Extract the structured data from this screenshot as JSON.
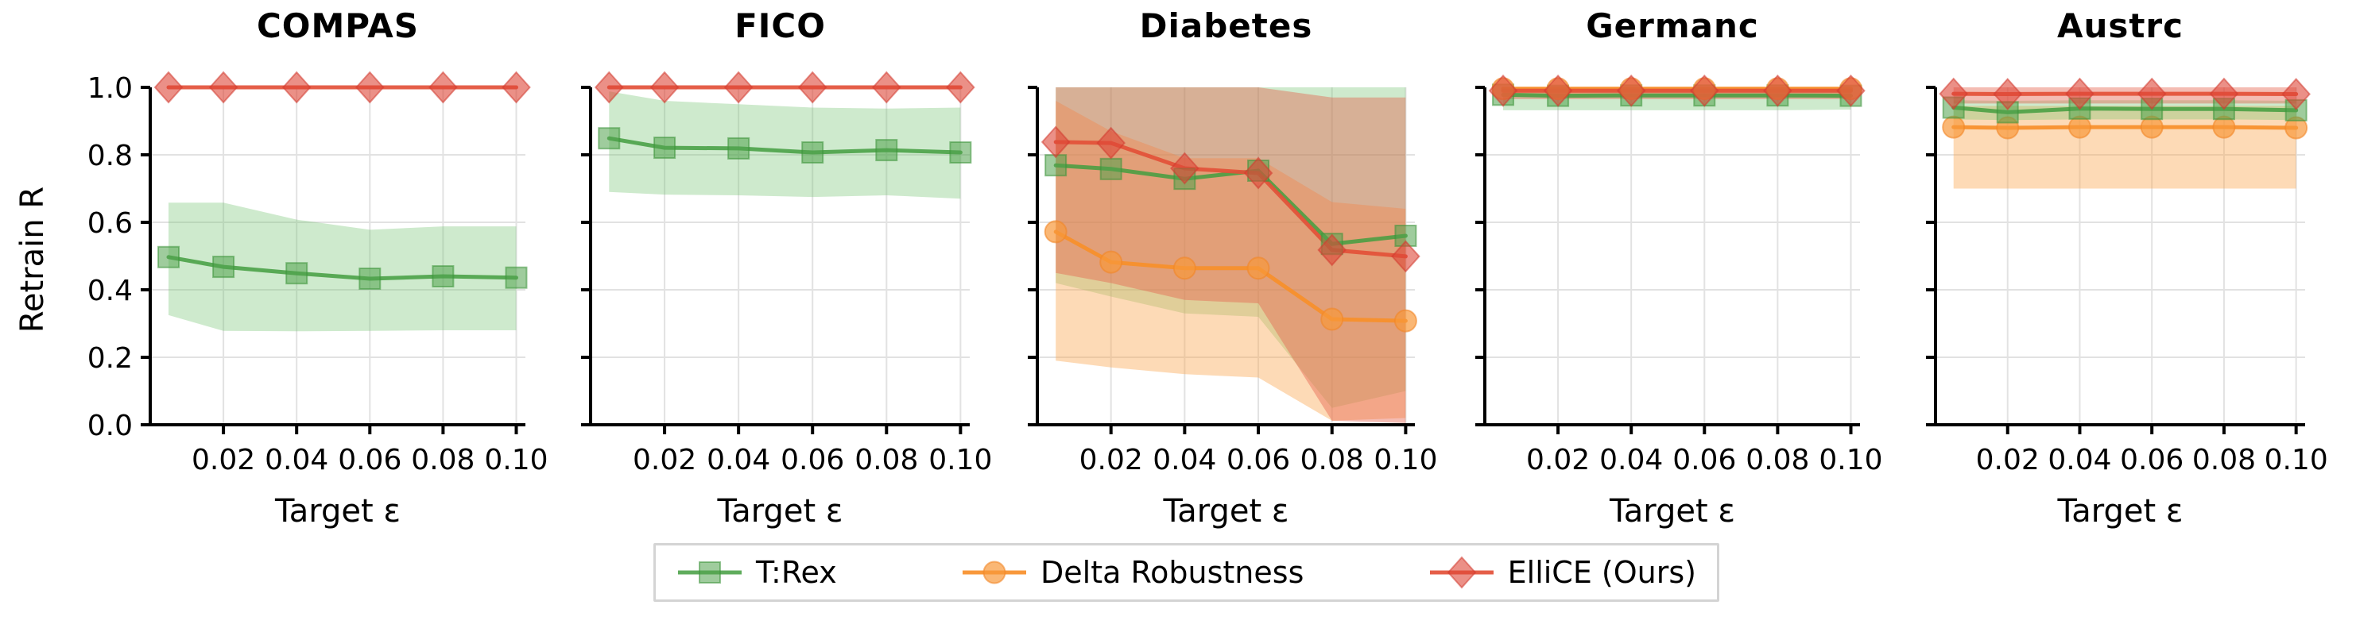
{
  "figure": {
    "ylabel": "Retrain R",
    "xlabel": "Target ε",
    "background_color": "#ffffff",
    "grid_color": "#e2e2e2",
    "spine_color": "#000000",
    "y_ticks": [
      "0.0",
      "0.2",
      "0.4",
      "0.6",
      "0.8",
      "1.0"
    ],
    "y_tick_values": [
      0.0,
      0.2,
      0.4,
      0.6,
      0.8,
      1.0
    ],
    "x_ticks": [
      "0.02",
      "0.04",
      "0.06",
      "0.08",
      "0.10"
    ],
    "x_tick_values": [
      0.02,
      0.04,
      0.06,
      0.08,
      0.1
    ],
    "xlim": [
      0.0,
      0.1025
    ],
    "ylim": [
      0.0,
      1.0
    ],
    "legend": {
      "items": [
        {
          "label": "T:Rex",
          "marker": "square",
          "series_key": "trex"
        },
        {
          "label": "Delta Robustness",
          "marker": "circle",
          "series_key": "delta"
        },
        {
          "label": "ElliCE (Ours)",
          "marker": "diamond",
          "series_key": "ellice"
        }
      ]
    },
    "series_styles": {
      "trex": {
        "line": "rgba(67,157,64,0.85)",
        "marker_fill": "rgba(80,163,76,0.55)",
        "marker_stroke": "rgba(60,148,58,0.55)",
        "band": "rgba(116,196,112,0.35)"
      },
      "delta": {
        "line": "rgba(247,143,42,0.92)",
        "marker_fill": "rgba(248,152,58,0.70)",
        "marker_stroke": "rgba(242,135,40,0.6)",
        "band": "rgba(251,166,82,0.42)"
      },
      "ellice": {
        "line": "rgba(227,80,56,0.92)",
        "marker_fill": "rgba(222,70,55,0.60)",
        "marker_stroke": "rgba(210,58,48,0.55)",
        "band": "rgba(229,95,75,0.42)"
      }
    }
  },
  "chart_data": [
    {
      "type": "line",
      "title": "COMPAS",
      "xlabel": "Target ε",
      "ylabel": "Retrain R",
      "grid": true,
      "xlim": [
        0.0,
        0.1025
      ],
      "ylim": [
        0.0,
        1.0
      ],
      "x": [
        0.005,
        0.02,
        0.04,
        0.06,
        0.08,
        0.1
      ],
      "series": [
        {
          "key": "trex",
          "name": "T:Rex",
          "values": [
            0.497,
            0.468,
            0.449,
            0.433,
            0.44,
            0.436
          ],
          "band_lower": [
            0.325,
            0.278,
            0.277,
            0.278,
            0.28,
            0.28
          ],
          "band_upper": [
            0.658,
            0.658,
            0.608,
            0.578,
            0.588,
            0.588
          ]
        },
        {
          "key": "ellice",
          "name": "ElliCE (Ours)",
          "values": [
            1.0,
            1.0,
            1.0,
            1.0,
            1.0,
            1.0
          ],
          "band_lower": null,
          "band_upper": null
        }
      ]
    },
    {
      "type": "line",
      "title": "FICO",
      "xlabel": "Target ε",
      "ylabel": "Retrain R",
      "grid": true,
      "xlim": [
        0.0,
        0.1025
      ],
      "ylim": [
        0.0,
        1.0
      ],
      "x": [
        0.005,
        0.02,
        0.04,
        0.06,
        0.08,
        0.1
      ],
      "series": [
        {
          "key": "trex",
          "name": "T:Rex",
          "values": [
            0.849,
            0.821,
            0.819,
            0.807,
            0.814,
            0.807
          ],
          "band_lower": [
            0.69,
            0.682,
            0.68,
            0.675,
            0.68,
            0.67
          ],
          "band_upper": [
            0.988,
            0.96,
            0.95,
            0.94,
            0.937,
            0.94
          ]
        },
        {
          "key": "ellice",
          "name": "ElliCE (Ours)",
          "values": [
            1.0,
            1.0,
            1.0,
            1.0,
            1.0,
            1.0
          ],
          "band_lower": null,
          "band_upper": null
        }
      ]
    },
    {
      "type": "line",
      "title": "Diabetes",
      "xlabel": "Target ε",
      "ylabel": "Retrain R",
      "grid": true,
      "xlim": [
        0.0,
        0.1025
      ],
      "ylim": [
        0.0,
        1.0
      ],
      "x": [
        0.005,
        0.02,
        0.04,
        0.06,
        0.08,
        0.1
      ],
      "series": [
        {
          "key": "trex",
          "name": "T:Rex",
          "values": [
            0.769,
            0.758,
            0.729,
            0.753,
            0.536,
            0.56
          ],
          "band_lower": [
            0.42,
            0.38,
            0.33,
            0.32,
            0.05,
            0.1
          ],
          "band_upper": [
            1.0,
            1.0,
            1.0,
            1.0,
            1.0,
            1.0
          ]
        },
        {
          "key": "delta",
          "name": "Delta Robustness",
          "values": [
            0.572,
            0.482,
            0.464,
            0.464,
            0.313,
            0.308
          ],
          "band_lower": [
            0.19,
            0.17,
            0.15,
            0.14,
            0.012,
            0.02
          ],
          "band_upper": [
            0.96,
            0.87,
            0.79,
            0.79,
            0.66,
            0.64
          ]
        },
        {
          "key": "ellice",
          "name": "ElliCE (Ours)",
          "values": [
            0.838,
            0.835,
            0.76,
            0.746,
            0.518,
            0.499
          ],
          "band_lower": [
            0.45,
            0.42,
            0.37,
            0.36,
            0.012,
            0.005
          ],
          "band_upper": [
            1.0,
            1.0,
            1.0,
            1.0,
            0.97,
            0.97
          ]
        }
      ]
    },
    {
      "type": "line",
      "title": "Germanc",
      "xlabel": "Target ε",
      "ylabel": "Retrain R",
      "grid": true,
      "xlim": [
        0.0,
        0.1025
      ],
      "ylim": [
        0.0,
        1.0
      ],
      "x": [
        0.005,
        0.02,
        0.04,
        0.06,
        0.08,
        0.1
      ],
      "series": [
        {
          "key": "trex",
          "name": "T:Rex",
          "values": [
            0.978,
            0.975,
            0.976,
            0.976,
            0.976,
            0.975
          ],
          "band_lower": [
            0.932,
            0.932,
            0.932,
            0.932,
            0.932,
            0.934
          ],
          "band_upper": [
            1.0,
            1.0,
            1.0,
            1.0,
            1.0,
            1.0
          ]
        },
        {
          "key": "delta",
          "name": "Delta Robustness",
          "values": [
            0.996,
            0.996,
            0.996,
            0.996,
            0.996,
            0.996
          ],
          "band_lower": [
            0.98,
            0.98,
            0.98,
            0.98,
            0.98,
            0.98
          ],
          "band_upper": [
            1.0,
            1.0,
            1.0,
            1.0,
            1.0,
            1.0
          ]
        },
        {
          "key": "ellice",
          "name": "ElliCE (Ours)",
          "values": [
            0.99,
            0.99,
            0.99,
            0.99,
            0.99,
            0.99
          ],
          "band_lower": [
            0.965,
            0.965,
            0.965,
            0.965,
            0.965,
            0.965
          ],
          "band_upper": [
            1.0,
            1.0,
            1.0,
            1.0,
            1.0,
            1.0
          ]
        }
      ]
    },
    {
      "type": "line",
      "title": "Austrc",
      "xlabel": "Target ε",
      "ylabel": "Retrain R",
      "grid": true,
      "xlim": [
        0.0,
        0.1025
      ],
      "ylim": [
        0.0,
        1.0
      ],
      "x": [
        0.005,
        0.02,
        0.04,
        0.06,
        0.08,
        0.1
      ],
      "series": [
        {
          "key": "delta",
          "name": "Delta Robustness",
          "values": [
            0.882,
            0.88,
            0.882,
            0.882,
            0.882,
            0.88
          ],
          "band_lower": [
            0.7,
            0.7,
            0.7,
            0.7,
            0.7,
            0.7
          ],
          "band_upper": [
            0.945,
            0.945,
            0.945,
            0.945,
            0.945,
            0.945
          ]
        },
        {
          "key": "trex",
          "name": "T:Rex",
          "values": [
            0.94,
            0.926,
            0.937,
            0.936,
            0.936,
            0.932
          ],
          "band_lower": [
            0.905,
            0.903,
            0.905,
            0.905,
            0.905,
            0.903
          ],
          "band_upper": [
            0.962,
            0.96,
            0.962,
            0.962,
            0.962,
            0.96
          ]
        },
        {
          "key": "ellice",
          "name": "ElliCE (Ours)",
          "values": [
            0.981,
            0.98,
            0.981,
            0.981,
            0.981,
            0.98
          ],
          "band_lower": [
            0.952,
            0.952,
            0.952,
            0.952,
            0.952,
            0.952
          ],
          "band_upper": [
            1.0,
            1.0,
            1.0,
            1.0,
            1.0,
            1.0
          ]
        }
      ]
    }
  ]
}
